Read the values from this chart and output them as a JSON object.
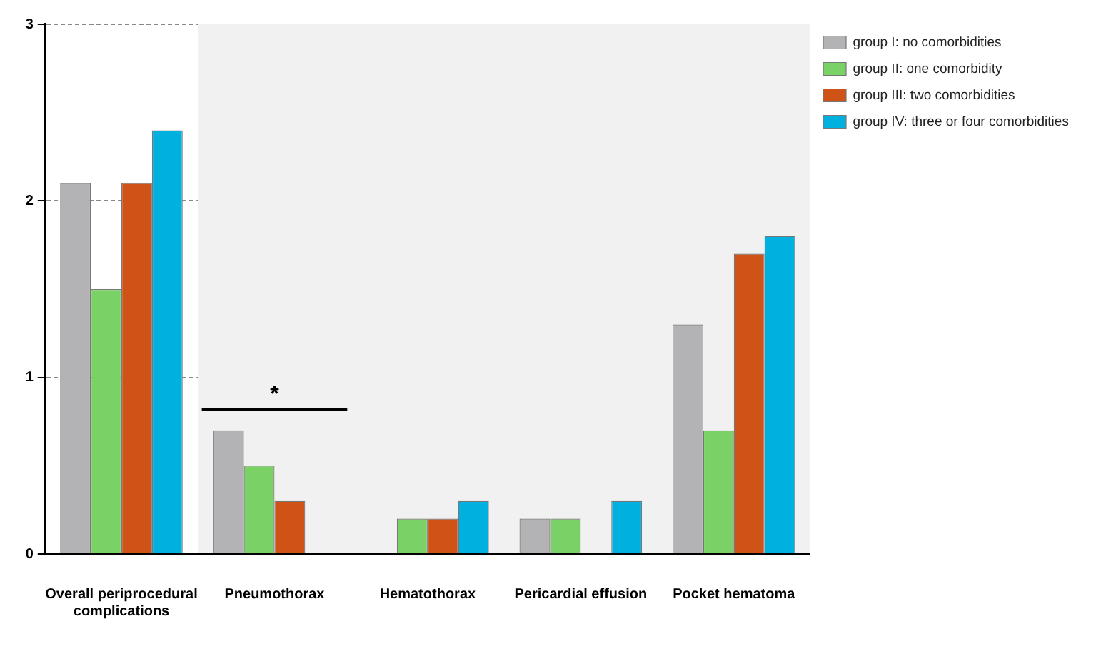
{
  "chart_data": {
    "type": "bar",
    "categories": [
      "Overall periprocedural complications",
      "Pneumothorax",
      "Hematothorax",
      "Pericardial effusion",
      "Pocket hematoma"
    ],
    "series": [
      {
        "name": "group I: no comorbidities",
        "color": "#b3b3b5",
        "values": [
          2.1,
          0.7,
          0,
          0.2,
          1.3
        ]
      },
      {
        "name": "group II: one comorbidity",
        "color": "#7ad166",
        "values": [
          1.5,
          0.5,
          0.2,
          0.2,
          0.7
        ]
      },
      {
        "name": "group III: two comorbidities",
        "color": "#cf5317",
        "values": [
          2.1,
          0.3,
          0.2,
          0,
          1.7
        ]
      },
      {
        "name": "group IV: three or four comorbidities",
        "color": "#00b1e0",
        "values": [
          2.4,
          0,
          0.3,
          0.3,
          1.8
        ]
      }
    ],
    "ylim": [
      0,
      3
    ],
    "yticks": [
      0,
      1,
      2,
      3
    ],
    "grid": "y",
    "legend": "top right",
    "bands": [
      {
        "axis": "x",
        "from": "Pneumothorax",
        "to": "Pocket hematoma",
        "color": "#f1f1f1"
      }
    ],
    "annotations": [
      "*"
    ]
  }
}
